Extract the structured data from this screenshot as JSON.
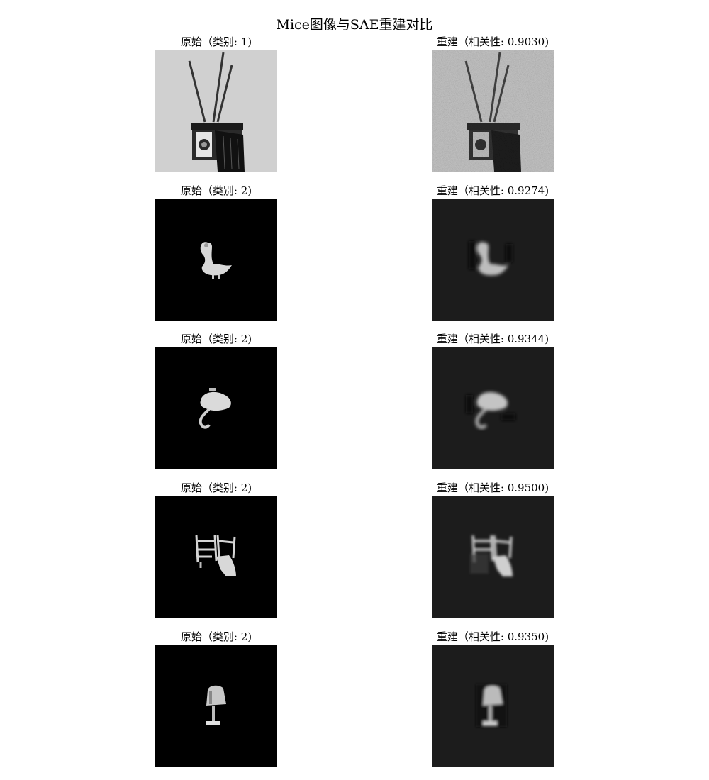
{
  "figure": {
    "title": "Mice图像与SAE重建对比"
  },
  "rows": [
    {
      "original": {
        "caption": "原始（类别: 1)",
        "subject": "camera-with-rods-icon",
        "background": "#d0d0d0"
      },
      "reconstruction": {
        "caption": "重建（相关性: 0.9030)",
        "subject": "camera-with-rods-icon",
        "background": "#bdbdbd"
      }
    },
    {
      "original": {
        "caption": "原始（类别: 2)",
        "subject": "swan-icon",
        "background": "#000000"
      },
      "reconstruction": {
        "caption": "重建（相关性: 0.9274)",
        "subject": "swan-icon",
        "background": "#1c1c1c"
      }
    },
    {
      "original": {
        "caption": "原始（类别: 2)",
        "subject": "flamingo-icon",
        "background": "#000000"
      },
      "reconstruction": {
        "caption": "重建（相关性: 0.9344)",
        "subject": "flamingo-icon",
        "background": "#1c1c1c"
      }
    },
    {
      "original": {
        "caption": "原始（类别: 2)",
        "subject": "chair-icon",
        "background": "#000000"
      },
      "reconstruction": {
        "caption": "重建（相关性: 0.9500)",
        "subject": "chair-icon",
        "background": "#1c1c1c"
      }
    },
    {
      "original": {
        "caption": "原始（类别: 2)",
        "subject": "lamp-icon",
        "background": "#000000"
      },
      "reconstruction": {
        "caption": "重建（相关性: 0.9350)",
        "subject": "lamp-icon",
        "background": "#1c1c1c"
      }
    }
  ]
}
